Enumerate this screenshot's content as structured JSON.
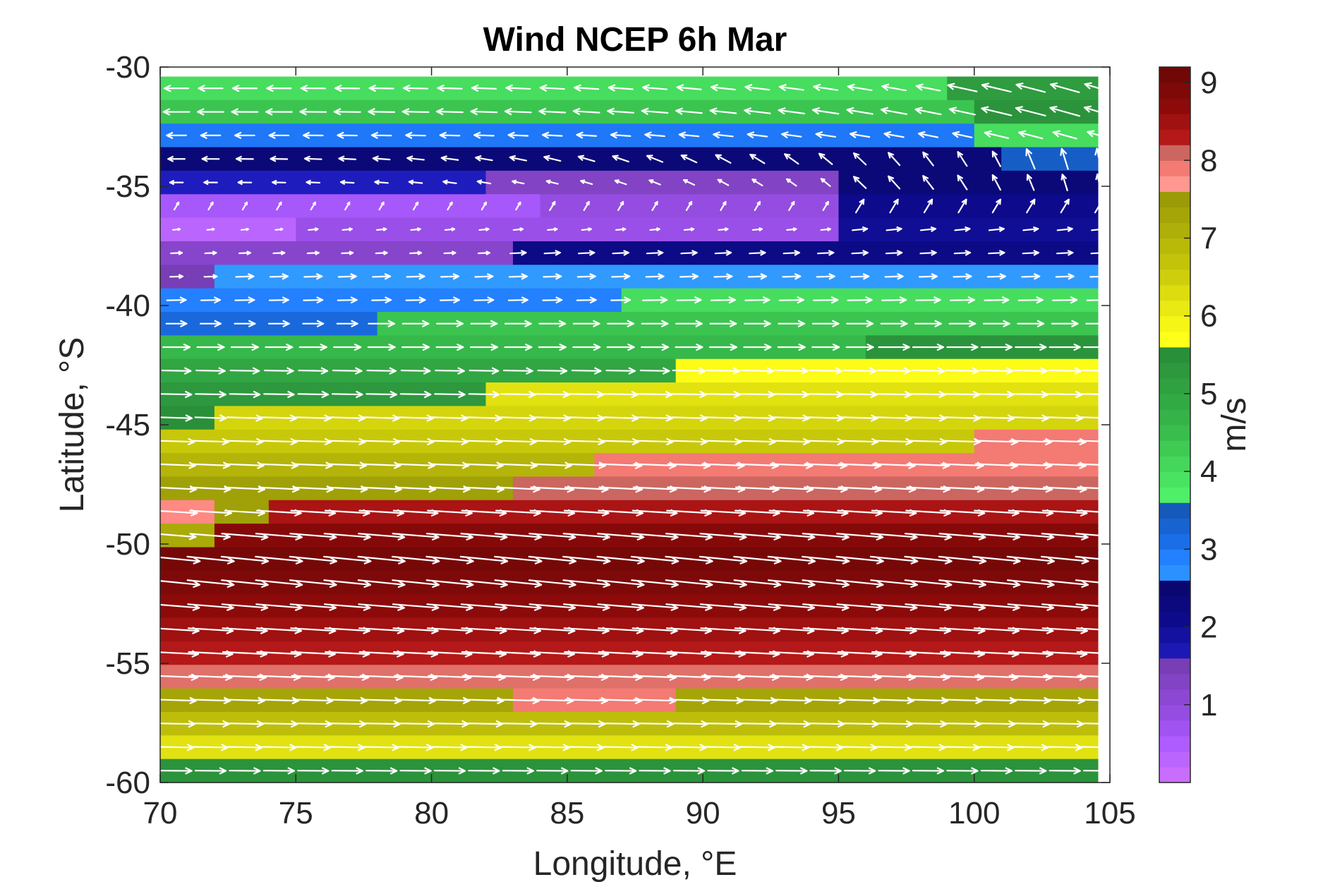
{
  "chart_data": {
    "type": "heatmap",
    "title": "Wind NCEP 6h Mar",
    "xlabel": "Longitude, °E",
    "ylabel": "Latitude, °S",
    "xlim": [
      70,
      105
    ],
    "ylim": [
      -60,
      -30
    ],
    "xticks": [
      70,
      75,
      80,
      85,
      90,
      95,
      100,
      105
    ],
    "yticks": [
      -30,
      -35,
      -40,
      -45,
      -50,
      -55,
      -60
    ],
    "grid": false,
    "overlay": "white wind vector arrows (quiver)",
    "colorbar": {
      "label": "m/s",
      "limits": [
        0,
        9.2
      ],
      "ticks": [
        1,
        2,
        3,
        4,
        5,
        6,
        7,
        8,
        9
      ],
      "bands": [
        {
          "range": [
            0,
            1.6
          ],
          "color": "#9a4fe8"
        },
        {
          "range": [
            1.6,
            2.6
          ],
          "color": "#0d0a8c"
        },
        {
          "range": [
            2.6,
            3.6
          ],
          "color": "#1a6fe8"
        },
        {
          "range": [
            3.6,
            5.6
          ],
          "color": "#36b84a"
        },
        {
          "range": [
            5.6,
            7.6
          ],
          "color": "#c8c80a"
        },
        {
          "range": [
            7.6,
            8.2
          ],
          "color": "#f47a74"
        },
        {
          "range": [
            8.2,
            9.2
          ],
          "color": "#8c0a0a"
        }
      ]
    },
    "rows": [
      {
        "lat": -30.5,
        "segments": [
          [
            70,
            99,
            4.0
          ],
          [
            99,
            105,
            5.2
          ]
        ],
        "u": -1,
        "v": 0.06
      },
      {
        "lat": -31.5,
        "segments": [
          [
            70,
            100,
            4.4
          ],
          [
            100,
            105,
            5.4
          ]
        ],
        "u": -1,
        "v": 0.05
      },
      {
        "lat": -32.5,
        "segments": [
          [
            70,
            100,
            3.0
          ],
          [
            100,
            105,
            4.0
          ]
        ],
        "u": -1,
        "v": 0.08
      },
      {
        "lat": -33.5,
        "segments": [
          [
            70,
            101,
            2.4
          ],
          [
            101,
            105,
            3.4
          ]
        ],
        "u": -1,
        "v": 0.15
      },
      {
        "lat": -34.5,
        "segments": [
          [
            70,
            82,
            1.6
          ],
          [
            82,
            95,
            1.3
          ],
          [
            95,
            105,
            2.4
          ]
        ],
        "u": -0.8,
        "v": 0.4
      },
      {
        "lat": -35.5,
        "segments": [
          [
            70,
            84,
            0.6
          ],
          [
            84,
            95,
            0.9
          ],
          [
            95,
            105,
            2.1
          ]
        ],
        "u": 0.3,
        "v": 0.5
      },
      {
        "lat": -36.5,
        "segments": [
          [
            70,
            75,
            0.3
          ],
          [
            75,
            95,
            0.8
          ],
          [
            95,
            105,
            2.0
          ]
        ],
        "u": 1,
        "v": 0.1
      },
      {
        "lat": -37.5,
        "segments": [
          [
            70,
            83,
            1.2
          ],
          [
            83,
            105,
            2.2
          ]
        ],
        "u": 1,
        "v": 0.05
      },
      {
        "lat": -38.5,
        "segments": [
          [
            70,
            72,
            1.5
          ],
          [
            72,
            105,
            2.6
          ]
        ],
        "u": 1,
        "v": 0.03
      },
      {
        "lat": -39.5,
        "segments": [
          [
            70,
            87,
            2.9
          ],
          [
            87,
            105,
            4.0
          ]
        ],
        "u": 1,
        "v": 0.02
      },
      {
        "lat": -40.5,
        "segments": [
          [
            70,
            78,
            3.2
          ],
          [
            78,
            105,
            4.4
          ]
        ],
        "u": 1,
        "v": 0.0
      },
      {
        "lat": -41.5,
        "segments": [
          [
            70,
            96,
            4.6
          ],
          [
            96,
            105,
            5.4
          ]
        ],
        "u": 1,
        "v": 0.0
      },
      {
        "lat": -42.5,
        "segments": [
          [
            70,
            89,
            5.0
          ],
          [
            89,
            105,
            5.8
          ]
        ],
        "u": 1,
        "v": -0.02
      },
      {
        "lat": -43.5,
        "segments": [
          [
            70,
            82,
            5.3
          ],
          [
            82,
            105,
            6.2
          ]
        ],
        "u": 1,
        "v": -0.02
      },
      {
        "lat": -44.5,
        "segments": [
          [
            70,
            72,
            5.5
          ],
          [
            72,
            105,
            6.4
          ]
        ],
        "u": 1,
        "v": -0.03
      },
      {
        "lat": -45.5,
        "segments": [
          [
            70,
            100,
            6.6
          ],
          [
            100,
            105,
            7.9
          ]
        ],
        "u": 1,
        "v": -0.03
      },
      {
        "lat": -46.5,
        "segments": [
          [
            70,
            86,
            7.0
          ],
          [
            86,
            105,
            7.9
          ]
        ],
        "u": 1,
        "v": -0.04
      },
      {
        "lat": -47.5,
        "segments": [
          [
            70,
            83,
            7.4
          ],
          [
            83,
            105,
            8.1
          ]
        ],
        "u": 1,
        "v": -0.05
      },
      {
        "lat": -48.5,
        "segments": [
          [
            70,
            72,
            7.8
          ],
          [
            72,
            74,
            7.4
          ],
          [
            74,
            105,
            8.4
          ]
        ],
        "u": 1,
        "v": -0.06
      },
      {
        "lat": -49.5,
        "segments": [
          [
            70,
            72,
            7.2
          ],
          [
            72,
            105,
            8.8
          ]
        ],
        "u": 1,
        "v": -0.08
      },
      {
        "lat": -50.5,
        "segments": [
          [
            70,
            105,
            9.0
          ]
        ],
        "u": 1,
        "v": -0.1
      },
      {
        "lat": -51.5,
        "segments": [
          [
            70,
            105,
            8.9
          ]
        ],
        "u": 1,
        "v": -0.1
      },
      {
        "lat": -52.5,
        "segments": [
          [
            70,
            105,
            8.7
          ]
        ],
        "u": 1,
        "v": -0.08
      },
      {
        "lat": -53.5,
        "segments": [
          [
            70,
            105,
            8.5
          ]
        ],
        "u": 1,
        "v": -0.06
      },
      {
        "lat": -54.5,
        "segments": [
          [
            70,
            105,
            8.3
          ]
        ],
        "u": 1,
        "v": -0.05
      },
      {
        "lat": -55.5,
        "segments": [
          [
            70,
            105,
            8.0
          ]
        ],
        "u": 1,
        "v": -0.04
      },
      {
        "lat": -56.5,
        "segments": [
          [
            70,
            83,
            7.3
          ],
          [
            83,
            89,
            7.9
          ],
          [
            89,
            105,
            7.3
          ]
        ],
        "u": 1,
        "v": -0.03
      },
      {
        "lat": -57.5,
        "segments": [
          [
            70,
            105,
            6.8
          ]
        ],
        "u": 1,
        "v": -0.02
      },
      {
        "lat": -58.5,
        "segments": [
          [
            70,
            105,
            6.2
          ]
        ],
        "u": 1,
        "v": -0.02
      },
      {
        "lat": -59.5,
        "segments": [
          [
            70,
            105,
            5.4
          ]
        ],
        "u": 1,
        "v": -0.01
      }
    ]
  }
}
